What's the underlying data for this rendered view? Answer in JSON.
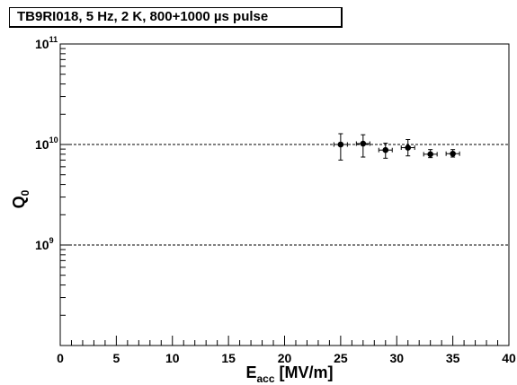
{
  "chart_data": {
    "type": "scatter",
    "title": "TB9RI018, 5 Hz, 2 K, 800+1000 µs pulse",
    "xlabel": {
      "main": "E",
      "sub": "acc",
      "unit": " [MV/m]"
    },
    "ylabel": {
      "main": "Q",
      "sub": "0"
    },
    "xlim": [
      0,
      40
    ],
    "ylim": [
      100000000.0,
      100000000000.0
    ],
    "yscale": "log",
    "x_major_ticks": [
      0,
      5,
      10,
      15,
      20,
      25,
      30,
      35,
      40
    ],
    "x_tick_labels": [
      "0",
      "5",
      "10",
      "15",
      "20",
      "25",
      "30",
      "35",
      "40"
    ],
    "y_tick_labels": [
      {
        "value": 1000000000.0,
        "base": "10",
        "exp": "9"
      },
      {
        "value": 10000000000.0,
        "base": "10",
        "exp": "10"
      },
      {
        "value": 100000000000.0,
        "base": "10",
        "exp": "11"
      }
    ],
    "grid_lines_y": [
      1000000000.0,
      10000000000.0
    ],
    "grid_style": "dashed",
    "series": [
      {
        "marker": "filled-circle",
        "color": "#000000",
        "points": [
          {
            "x": 25.0,
            "y": 10000000000.0,
            "xerr": 0.6,
            "ylo": 7000000000.0,
            "yhi": 12800000000.0
          },
          {
            "x": 27.0,
            "y": 10200000000.0,
            "xerr": 0.6,
            "ylo": 7500000000.0,
            "yhi": 12500000000.0
          },
          {
            "x": 29.0,
            "y": 8800000000.0,
            "xerr": 0.6,
            "ylo": 7300000000.0,
            "yhi": 10300000000.0
          },
          {
            "x": 31.0,
            "y": 9300000000.0,
            "xerr": 0.6,
            "ylo": 7700000000.0,
            "yhi": 11200000000.0
          },
          {
            "x": 33.0,
            "y": 8000000000.0,
            "xerr": 0.6,
            "ylo": 7400000000.0,
            "yhi": 8900000000.0
          },
          {
            "x": 35.0,
            "y": 8100000000.0,
            "xerr": 0.6,
            "ylo": 7500000000.0,
            "yhi": 8900000000.0
          }
        ]
      }
    ]
  }
}
